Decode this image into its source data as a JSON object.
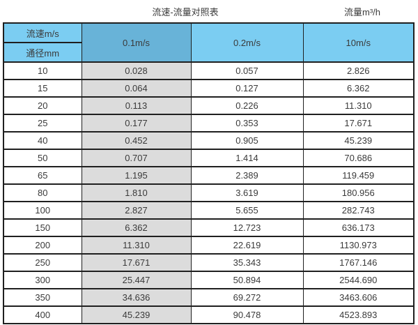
{
  "page": {
    "title_main": "流速-流量对照表",
    "title_right": "流量m³/h"
  },
  "table": {
    "corner": {
      "top": "流速m/s",
      "bottom": "通径mm"
    },
    "columns": [
      "0.1m/s",
      "0.2m/s",
      "10m/s"
    ],
    "rows": [
      {
        "diameter": "10",
        "values": [
          "0.028",
          "0.057",
          "2.826"
        ]
      },
      {
        "diameter": "15",
        "values": [
          "0.064",
          "0.127",
          "6.362"
        ]
      },
      {
        "diameter": "20",
        "values": [
          "0.113",
          "0.226",
          "11.310"
        ]
      },
      {
        "diameter": "25",
        "values": [
          "0.177",
          "0.353",
          "17.671"
        ]
      },
      {
        "diameter": "40",
        "values": [
          "0.452",
          "0.905",
          "45.239"
        ]
      },
      {
        "diameter": "50",
        "values": [
          "0.707",
          "1.414",
          "70.686"
        ]
      },
      {
        "diameter": "65",
        "values": [
          "1.195",
          "2.389",
          "119.459"
        ]
      },
      {
        "diameter": "80",
        "values": [
          "1.810",
          "3.619",
          "180.956"
        ]
      },
      {
        "diameter": "100",
        "values": [
          "2.827",
          "5.655",
          "282.743"
        ]
      },
      {
        "diameter": "150",
        "values": [
          "6.362",
          "12.723",
          "636.173"
        ]
      },
      {
        "diameter": "200",
        "values": [
          "11.310",
          "22.619",
          "1130.973"
        ]
      },
      {
        "diameter": "250",
        "values": [
          "17.671",
          "35.343",
          "1767.146"
        ]
      },
      {
        "diameter": "300",
        "values": [
          "25.447",
          "50.894",
          "2544.690"
        ]
      },
      {
        "diameter": "350",
        "values": [
          "34.636",
          "69.272",
          "3463.606"
        ]
      },
      {
        "diameter": "400",
        "values": [
          "45.239",
          "90.478",
          "4523.893"
        ]
      }
    ]
  },
  "colors": {
    "header_blue": "#7bcdf2",
    "highlight_column_blue": "#68b3d8",
    "highlight_column_gray": "#dcdcdc",
    "border": "#1f1f1f",
    "text": "#3a3a3a"
  },
  "chart_data": {
    "type": "table",
    "title": "流速-流量对照表",
    "value_unit_label": "流量m³/h",
    "row_header": "通径mm",
    "column_header": "流速m/s",
    "categories": [
      10,
      15,
      20,
      25,
      40,
      50,
      65,
      80,
      100,
      150,
      200,
      250,
      300,
      350,
      400
    ],
    "series": [
      {
        "name": "0.1m/s",
        "values": [
          0.028,
          0.064,
          0.113,
          0.177,
          0.452,
          0.707,
          1.195,
          1.81,
          2.827,
          6.362,
          11.31,
          17.671,
          25.447,
          34.636,
          45.239
        ]
      },
      {
        "name": "0.2m/s",
        "values": [
          0.057,
          0.127,
          0.226,
          0.353,
          0.905,
          1.414,
          2.389,
          3.619,
          5.655,
          12.723,
          22.619,
          35.343,
          50.894,
          69.272,
          90.478
        ]
      },
      {
        "name": "10m/s",
        "values": [
          2.826,
          6.362,
          11.31,
          17.671,
          45.239,
          70.686,
          119.459,
          180.956,
          282.743,
          636.173,
          1130.973,
          1767.146,
          2544.69,
          3463.606,
          4523.893
        ]
      }
    ]
  }
}
